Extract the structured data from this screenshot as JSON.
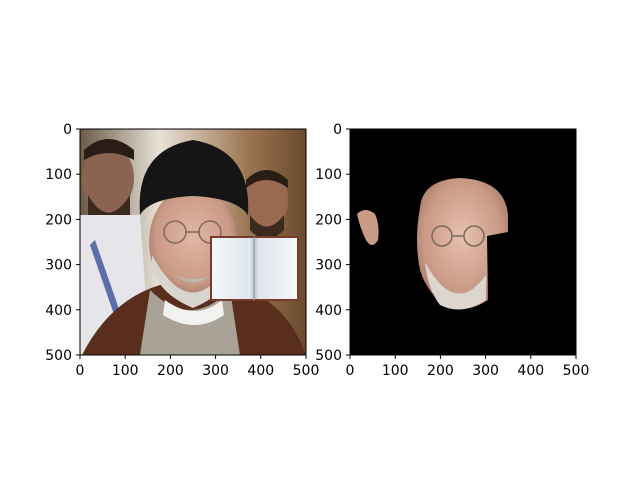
{
  "chart_data": [
    {
      "type": "image",
      "title": "",
      "xlabel": "",
      "ylabel": "",
      "xlim": [
        0,
        500
      ],
      "ylim": [
        500,
        0
      ],
      "x_ticks": [
        0,
        100,
        200,
        300,
        400,
        500
      ],
      "y_ticks": [
        0,
        100,
        200,
        300,
        400,
        500
      ],
      "grid": false,
      "legend": null,
      "content": "photo-with-book-occlusion"
    },
    {
      "type": "image",
      "title": "",
      "xlabel": "",
      "ylabel": "",
      "xlim": [
        0,
        500
      ],
      "ylim": [
        500,
        0
      ],
      "x_ticks": [
        0,
        100,
        200,
        300,
        400,
        500
      ],
      "y_ticks": [
        0,
        100,
        200,
        300,
        400,
        500
      ],
      "grid": false,
      "legend": null,
      "content": "masked-face-on-black"
    }
  ],
  "colors": {
    "mask_background": "#000000",
    "skin": "#c99a86",
    "turban": "#151515",
    "robe": "#5a2e1c",
    "book_page": "#eef1f4",
    "book_border": "#7a3a2a"
  }
}
